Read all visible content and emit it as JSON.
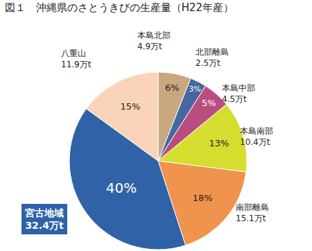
{
  "chart_data": {
    "type": "pie",
    "title": "図１　沖縄県のさとうきびの生産量（H22年産）",
    "categories": [
      "本島北部",
      "北部離島",
      "本島中部",
      "本島南部",
      "南部離島",
      "宮古地域",
      "八重山"
    ],
    "values": [
      6,
      3,
      5,
      13,
      18,
      40,
      15
    ],
    "value_labels": [
      "6%",
      "3%",
      "5%",
      "13%",
      "18%",
      "40%",
      "15%"
    ],
    "amount_labels": [
      "4.9万t",
      "2.5万t",
      "4.5万t",
      "10.4万t",
      "15.1万t",
      "32.4万t",
      "11.9万t"
    ],
    "colors": [
      "#c9a880",
      "#46679f",
      "#b94d80",
      "#d5dd2e",
      "#f0934c",
      "#2f62a6",
      "#f9d4b8"
    ],
    "data_labels": true
  }
}
